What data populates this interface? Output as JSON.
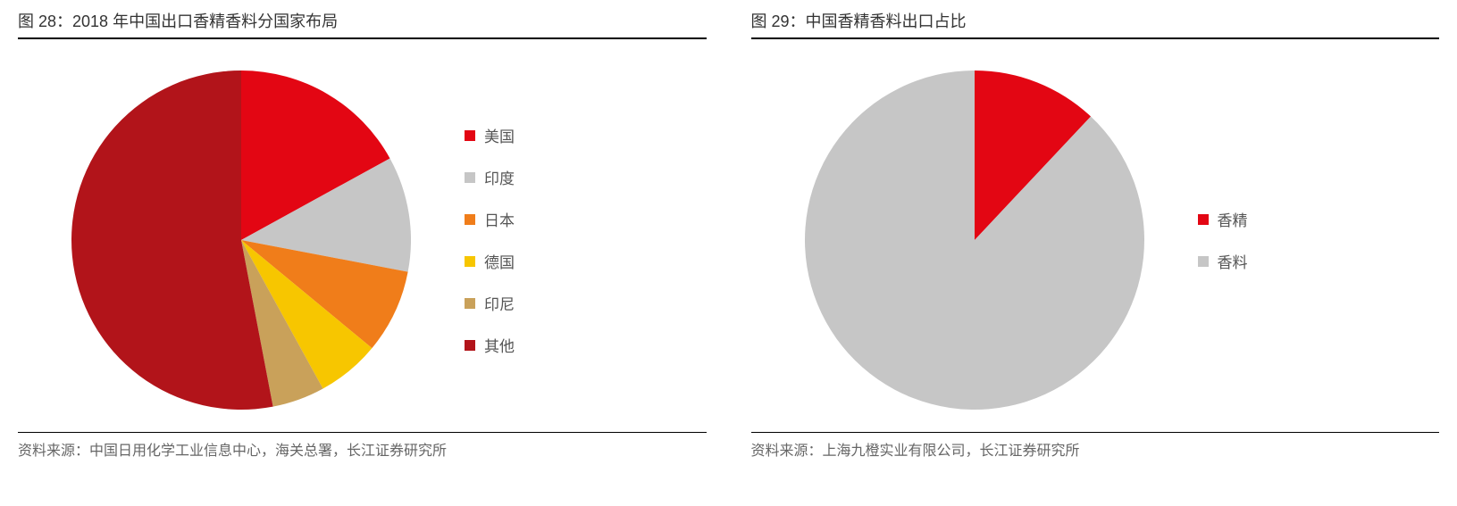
{
  "left": {
    "title": "图 28：2018 年中国出口香精香料分国家布局",
    "source": "资料来源：中国日用化学工业信息中心，海关总署，长江证券研究所",
    "chart": {
      "type": "pie",
      "radius": 190,
      "start_angle_deg": -90,
      "background_color": "#ffffff",
      "slices": [
        {
          "label": "美国",
          "value": 17,
          "color": "#e30613"
        },
        {
          "label": "印度",
          "value": 11,
          "color": "#c6c6c6"
        },
        {
          "label": "日本",
          "value": 8,
          "color": "#f07d1a"
        },
        {
          "label": "德国",
          "value": 6,
          "color": "#f7c600"
        },
        {
          "label": "印尼",
          "value": 5,
          "color": "#c9a15a"
        },
        {
          "label": "其他",
          "value": 53,
          "color": "#b2141a"
        }
      ],
      "legend_fontsize": 17,
      "legend_text_color": "#555555"
    }
  },
  "right": {
    "title": "图 29：中国香精香料出口占比",
    "source": "资料来源：上海九橙实业有限公司，长江证券研究所",
    "chart": {
      "type": "pie",
      "radius": 190,
      "start_angle_deg": -90,
      "background_color": "#ffffff",
      "slices": [
        {
          "label": "香精",
          "value": 12,
          "color": "#e30613"
        },
        {
          "label": "香料",
          "value": 88,
          "color": "#c6c6c6"
        }
      ],
      "legend_fontsize": 17,
      "legend_text_color": "#555555"
    }
  }
}
